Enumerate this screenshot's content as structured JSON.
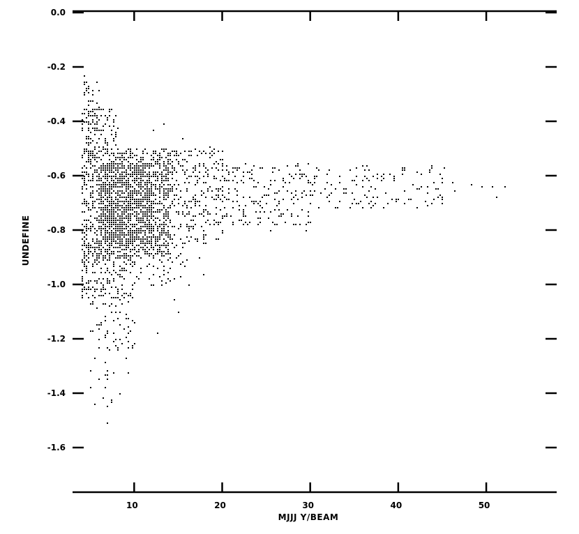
{
  "chart_data": {
    "type": "scatter",
    "title": "",
    "xlabel": "MJJJ Y/BEAM",
    "ylabel": "UNDEFINE",
    "xlim": [
      3,
      58
    ],
    "ylim": [
      -1.6,
      0.0
    ],
    "grid": false,
    "x_ticks": [
      10,
      20,
      30,
      40,
      50
    ],
    "x_tick_labels": [
      "10",
      "20",
      "30",
      "40",
      "50"
    ],
    "y_ticks": [
      0.0,
      -0.2,
      -0.4,
      -0.6,
      -0.8,
      -1.0,
      -1.2,
      -1.4,
      -1.6
    ],
    "y_tick_labels": [
      "0.0",
      "-0.2",
      "-0.4",
      "-0.6",
      "-0.8",
      "-1.0",
      "-1.2",
      "-1.4",
      "-1.6"
    ],
    "marker_color": "#000000",
    "density_regions": [
      {
        "x": [
          4,
          6
        ],
        "y": [
          -0.25,
          -0.45
        ],
        "n": 40
      },
      {
        "x": [
          4,
          8
        ],
        "y": [
          -0.35,
          -0.55
        ],
        "n": 120
      },
      {
        "x": [
          4,
          14
        ],
        "y": [
          -0.5,
          -0.9
        ],
        "n": 900
      },
      {
        "x": [
          6,
          12
        ],
        "y": [
          -0.55,
          -0.85
        ],
        "n": 900
      },
      {
        "x": [
          12,
          20
        ],
        "y": [
          -0.5,
          -0.85
        ],
        "n": 350
      },
      {
        "x": [
          20,
          30
        ],
        "y": [
          -0.55,
          -0.78
        ],
        "n": 180
      },
      {
        "x": [
          30,
          45
        ],
        "y": [
          -0.56,
          -0.72
        ],
        "n": 120
      },
      {
        "x": [
          4,
          10
        ],
        "y": [
          -0.85,
          -1.05
        ],
        "n": 220
      },
      {
        "x": [
          10,
          16
        ],
        "y": [
          -0.85,
          -1.0
        ],
        "n": 60
      },
      {
        "x": [
          5,
          10
        ],
        "y": [
          -1.05,
          -1.25
        ],
        "n": 60
      },
      {
        "x": [
          5,
          8
        ],
        "y": [
          -1.25,
          -1.45
        ],
        "n": 15
      }
    ],
    "points": [
      {
        "x": 4.2,
        "y": -0.23
      },
      {
        "x": 7.0,
        "y": -1.51
      },
      {
        "x": 7.3,
        "y": -1.43
      },
      {
        "x": 8.3,
        "y": -1.4
      },
      {
        "x": 9.3,
        "y": -1.32
      },
      {
        "x": 8.2,
        "y": -1.2
      },
      {
        "x": 9.0,
        "y": -1.27
      },
      {
        "x": 12.7,
        "y": -1.18
      },
      {
        "x": 15.0,
        "y": -1.1
      },
      {
        "x": 14.5,
        "y": -1.05
      },
      {
        "x": 16.2,
        "y": -1.0
      },
      {
        "x": 17.8,
        "y": -0.96
      },
      {
        "x": 17.4,
        "y": -0.9
      },
      {
        "x": 22.8,
        "y": -0.78
      },
      {
        "x": 25.5,
        "y": -0.8
      },
      {
        "x": 28.0,
        "y": -0.78
      },
      {
        "x": 29.5,
        "y": -0.8
      },
      {
        "x": 38.5,
        "y": -0.66
      },
      {
        "x": 41.5,
        "y": -0.63
      },
      {
        "x": 43.3,
        "y": -0.66
      },
      {
        "x": 45.0,
        "y": -0.68
      },
      {
        "x": 45.2,
        "y": -0.57
      },
      {
        "x": 46.0,
        "y": -0.62
      },
      {
        "x": 46.3,
        "y": -0.65
      },
      {
        "x": 48.2,
        "y": -0.63
      },
      {
        "x": 49.5,
        "y": -0.64
      },
      {
        "x": 50.7,
        "y": -0.64
      },
      {
        "x": 52.0,
        "y": -0.64
      },
      {
        "x": 51.0,
        "y": -0.68
      },
      {
        "x": 12.0,
        "y": -0.43
      },
      {
        "x": 13.3,
        "y": -0.41
      },
      {
        "x": 15.5,
        "y": -0.46
      },
      {
        "x": 18.5,
        "y": -0.49
      }
    ]
  }
}
